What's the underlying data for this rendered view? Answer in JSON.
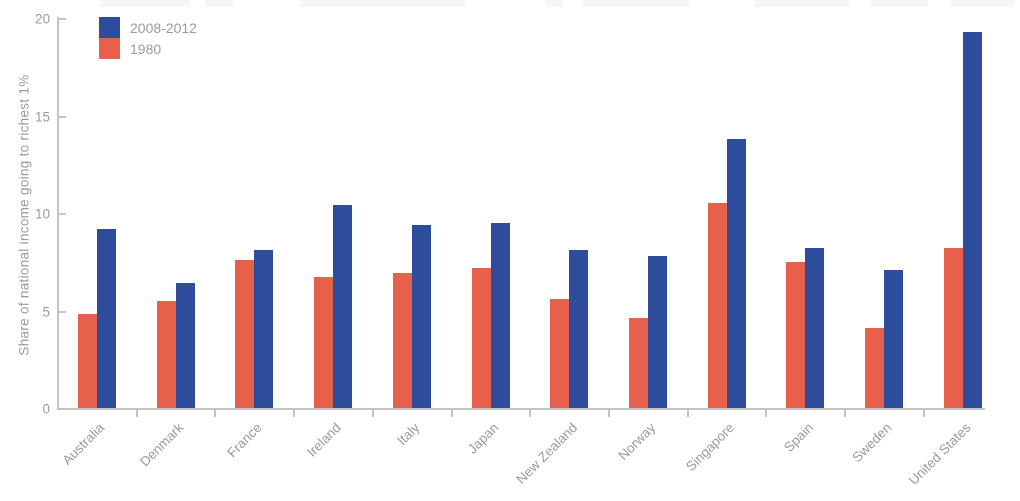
{
  "chart_data": {
    "type": "bar",
    "title": "",
    "xlabel": "",
    "ylabel": "Share of national income going to richest 1%",
    "ylim": [
      0,
      20
    ],
    "yticks": [
      0,
      5,
      10,
      15,
      20
    ],
    "grid": false,
    "legend_position": "top-left",
    "categories": [
      "Australia",
      "Denmark",
      "France",
      "Ireland",
      "Italy",
      "Japan",
      "New Zealand",
      "Norway",
      "Singapore",
      "Spain",
      "Sweden",
      "United States"
    ],
    "series": [
      {
        "name": "2008-2012",
        "color": "#2d4c9c",
        "values": [
          9.2,
          6.4,
          8.1,
          10.4,
          9.4,
          9.5,
          8.1,
          7.8,
          13.8,
          8.2,
          7.1,
          19.3
        ]
      },
      {
        "name": "1980",
        "color": "#e6604c",
        "values": [
          4.8,
          5.5,
          7.6,
          6.7,
          6.9,
          7.2,
          5.6,
          4.6,
          10.5,
          7.5,
          4.1,
          8.2
        ]
      }
    ],
    "colors": {
      "axis": "#c4c4c4",
      "labels": "#9b9b9b",
      "background": "#ffffff"
    }
  }
}
